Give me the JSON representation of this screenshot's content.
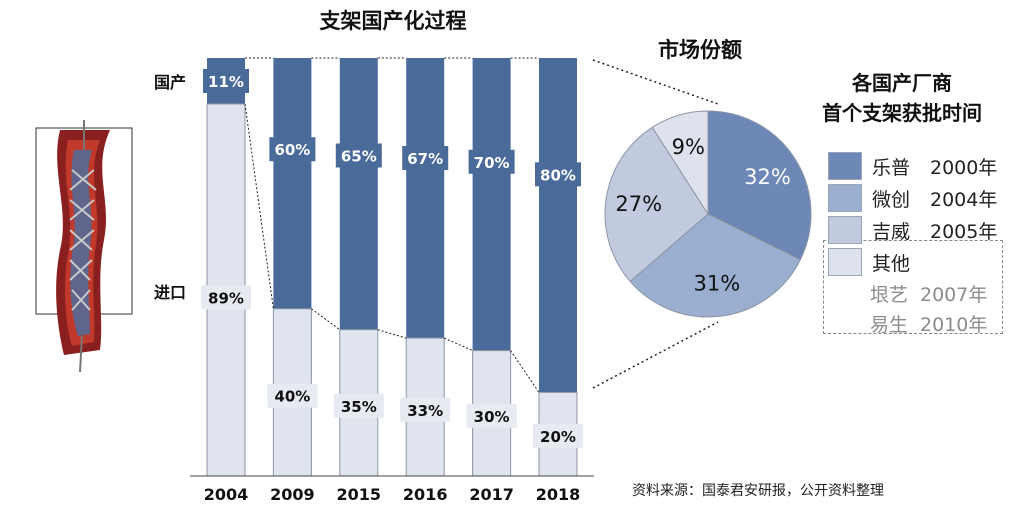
{
  "chart_data": [
    {
      "type": "bar",
      "subtype": "stacked-100",
      "title": "支架国产化过程",
      "categories": [
        "2004",
        "2009",
        "2015",
        "2016",
        "2017",
        "2018"
      ],
      "series": [
        {
          "name": "国产",
          "values": [
            11,
            60,
            65,
            67,
            70,
            80
          ],
          "color": "#4a6a9a",
          "labels": [
            "11%",
            "60%",
            "65%",
            "67%",
            "70%",
            "80%"
          ]
        },
        {
          "name": "进口",
          "values": [
            89,
            40,
            35,
            33,
            30,
            20
          ],
          "color": "#dfe4ee",
          "labels": [
            "89%",
            "40%",
            "35%",
            "33%",
            "30%",
            "20%"
          ]
        }
      ],
      "ylim": [
        0,
        100
      ]
    },
    {
      "type": "pie",
      "title": "市场份额",
      "slices": [
        {
          "value": 32,
          "label": "32%",
          "color": "#6d87b6"
        },
        {
          "value": 31,
          "label": "31%",
          "color": "#9aaed0"
        },
        {
          "value": 27,
          "label": "27%",
          "color": "#c1cade"
        },
        {
          "value": 9,
          "label": "9%",
          "color": "#dde2ec"
        }
      ]
    }
  ],
  "legend": {
    "title_line1": "各国产厂商",
    "title_line2": "首个支架获批时间",
    "items": [
      {
        "name": "乐普",
        "year": "2000年",
        "color": "#6d87b6"
      },
      {
        "name": "微创",
        "year": "2004年",
        "color": "#9aaed0"
      },
      {
        "name": "吉威",
        "year": "2005年",
        "color": "#c1cade"
      },
      {
        "name": "其他",
        "year": "",
        "color": "#dde2ec"
      }
    ],
    "others": [
      {
        "name": "垠艺",
        "year": "2007年"
      },
      {
        "name": "易生",
        "year": "2010年"
      }
    ]
  },
  "source": "资料来源：国泰君安研报，公开资料整理",
  "stent_image": "stent-illustration"
}
